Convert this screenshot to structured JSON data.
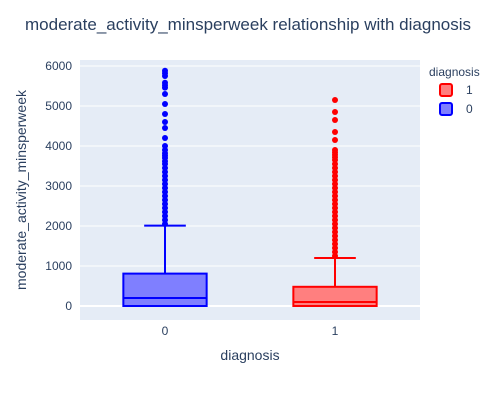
{
  "chart_data": {
    "type": "box",
    "title": "moderate_activity_minsperweek relationship with diagnosis",
    "xlabel": "diagnosis",
    "ylabel": "moderate_activity_minsperweek",
    "categories": [
      "0",
      "1"
    ],
    "y_ticks": [
      0,
      1000,
      2000,
      3000,
      4000,
      5000,
      6000
    ],
    "ylim": [
      -350,
      6150
    ],
    "grid": true,
    "legend": {
      "title": "diagnosis",
      "placement": "top-right",
      "entries": [
        "1",
        "0"
      ]
    },
    "series": [
      {
        "name": "0",
        "category": "0",
        "color": "#0000ff",
        "fill": "#7f7fff",
        "min": 0,
        "q1": 0,
        "median": 200,
        "q3": 810,
        "upper_fence": 2010,
        "outliers": [
          2050,
          2150,
          2250,
          2350,
          2450,
          2550,
          2650,
          2750,
          2850,
          2950,
          3050,
          3150,
          3250,
          3350,
          3450,
          3550,
          3620,
          3700,
          3760,
          3820,
          3900,
          4000,
          4200,
          4450,
          4600,
          4800,
          5050,
          5300,
          5460,
          5520,
          5580,
          5750,
          5820,
          5880
        ]
      },
      {
        "name": "1",
        "category": "1",
        "color": "#ff0000",
        "fill": "#ff7f7f",
        "min": 0,
        "q1": 0,
        "median": 100,
        "q3": 480,
        "upper_fence": 1200,
        "outliers": [
          1250,
          1350,
          1450,
          1550,
          1650,
          1750,
          1850,
          1950,
          2050,
          2150,
          2250,
          2350,
          2450,
          2550,
          2650,
          2750,
          2850,
          2950,
          3050,
          3150,
          3250,
          3350,
          3450,
          3550,
          3650,
          3720,
          3780,
          3840,
          3900,
          4150,
          4350,
          4650,
          4850,
          5150
        ]
      }
    ]
  }
}
